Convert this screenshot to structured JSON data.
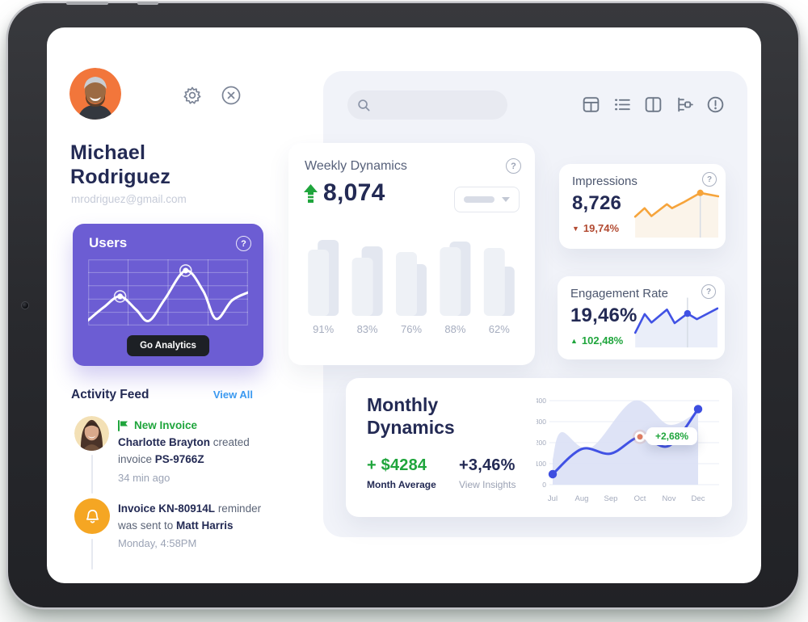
{
  "profile": {
    "name_line1": "Michael",
    "name_line2": "Rodriguez",
    "email": "mrodriguez@gmail.com"
  },
  "users_card": {
    "title": "Users",
    "button_label": "Go Analytics"
  },
  "activity": {
    "header": "Activity Feed",
    "view_all": "View All",
    "items": [
      {
        "badge": "New Invoice",
        "line1_bold": "Charlotte Brayton",
        "line1_rest": " created",
        "line2_pre": "invoice ",
        "line2_bold": "PS-9766Z",
        "time": "34 min ago"
      },
      {
        "line1_bold": "Invoice KN-80914L",
        "line1_rest": " reminder",
        "line2_pre": "was sent to ",
        "line2_bold": "Matt Harris",
        "time": "Monday, 4:58PM"
      }
    ]
  },
  "weekly": {
    "title": "Weekly Dynamics",
    "value": "8,074"
  },
  "impressions": {
    "title": "Impressions",
    "value": "8,726",
    "delta": "19,74%"
  },
  "engagement": {
    "title": "Engagement Rate",
    "value": "19,46%",
    "delta": "102,48%"
  },
  "monthly": {
    "title_line1": "Monthly",
    "title_line2": "Dynamics",
    "stat1_value": "+ $4284",
    "stat1_label": "Month Average",
    "stat2_value": "+3,46%",
    "stat2_label": "View Insights",
    "tooltip": "+2,68%"
  },
  "icons": {
    "help_glyph": "?",
    "trend_up_glyph": "▲",
    "trend_down_glyph": "▼"
  },
  "colors": {
    "accent_purple": "#6c5dd3",
    "navy_text": "#232a54",
    "green": "#1fa53c",
    "red": "#b24a31",
    "link_blue": "#3b99f0",
    "orange_line": "#f6a43b",
    "blue_line": "#4152e4",
    "panel_bg": "#f1f3f9",
    "bell_orange": "#f5a623"
  },
  "chart_data": {
    "users_spark": {
      "type": "line",
      "smooth": true,
      "stroke": "#FFFFFF",
      "stroke_width": 3,
      "grid": {
        "cols": 4,
        "rows": 5,
        "color": "rgba(255,255,255,0.30)"
      },
      "points": [
        [
          0,
          92
        ],
        [
          10,
          72
        ],
        [
          20,
          56
        ],
        [
          30,
          76
        ],
        [
          38,
          93
        ],
        [
          48,
          60
        ],
        [
          61,
          17
        ],
        [
          72,
          48
        ],
        [
          80,
          90
        ],
        [
          90,
          62
        ],
        [
          100,
          50
        ]
      ],
      "markers": [
        {
          "pt": [
            20,
            56
          ],
          "r": 3.5,
          "halo_r": 7,
          "color": "#FFFFFF"
        },
        {
          "pt": [
            61,
            17
          ],
          "r": 3.5,
          "halo_r": 7,
          "color": "#FFFFFF"
        }
      ]
    },
    "weekly_bars": {
      "type": "bars",
      "categories": [
        "91%",
        "83%",
        "76%",
        "88%",
        "62%"
      ],
      "series": [
        {
          "name": "previous",
          "color": "#E3E7F0",
          "values": [
            94,
            86,
            64,
            92,
            61
          ]
        },
        {
          "name": "current",
          "color": "#EEF1F6",
          "values": [
            82,
            72,
            79,
            85,
            84
          ]
        }
      ],
      "label_color": "#A6ADBF"
    },
    "impressions_spark": {
      "type": "line",
      "smooth": false,
      "stroke": "#F6A43B",
      "stroke_width": 2.6,
      "area_fill": "#F9EDDC",
      "area_opacity": 0.6,
      "baseline": 93,
      "vline": {
        "x": 78,
        "y1": 8,
        "y2": 93,
        "color": "#D7DCE5"
      },
      "points": [
        [
          2,
          56
        ],
        [
          13,
          41
        ],
        [
          21,
          55
        ],
        [
          39,
          34
        ],
        [
          45,
          41
        ],
        [
          58,
          31
        ],
        [
          78,
          14
        ],
        [
          99,
          20
        ]
      ],
      "markers": [
        {
          "pt": [
            78,
            14
          ],
          "r": 4,
          "color": "#F6A43B"
        }
      ]
    },
    "engagement_spark": {
      "type": "line",
      "smooth": false,
      "stroke": "#4152E4",
      "stroke_width": 2.6,
      "area_fill": "#E3E8F7",
      "area_opacity": 0.75,
      "baseline": 93,
      "vline": {
        "x": 64,
        "y1": 5,
        "y2": 93,
        "color": "#D7DCE5"
      },
      "points": [
        [
          3,
          67
        ],
        [
          14,
          34
        ],
        [
          22,
          49
        ],
        [
          40,
          26
        ],
        [
          49,
          50
        ],
        [
          64,
          33
        ],
        [
          75,
          43
        ],
        [
          99,
          24
        ]
      ],
      "markers": [
        {
          "pt": [
            64,
            33
          ],
          "r": 4.2,
          "color": "#4152E4"
        }
      ]
    },
    "monthly_dynamics": {
      "type": "monthly",
      "months": [
        "Jul",
        "Aug",
        "Sep",
        "Oct",
        "Nov",
        "Dec"
      ],
      "yticks": [
        0,
        100,
        200,
        300,
        400
      ],
      "ylim": [
        0,
        400
      ],
      "line_values": [
        50,
        170,
        148,
        228,
        185,
        360
      ],
      "line_color": "#4152E4",
      "area_x": [
        0,
        0.3,
        1.3,
        2.8,
        4.0,
        5.0
      ],
      "area_values": [
        120,
        250,
        175,
        400,
        285,
        350
      ],
      "area_fill": "#DAE0F5",
      "end_dot_indices": [
        0,
        5
      ],
      "dot_color": "#3D4EE0",
      "highlight": {
        "month_index": 3,
        "value": 228,
        "label": "+2,68%",
        "dot_color": "#E07E63"
      },
      "tick_color": "#A3AABC",
      "grid_color": "#EAEDF4"
    }
  }
}
